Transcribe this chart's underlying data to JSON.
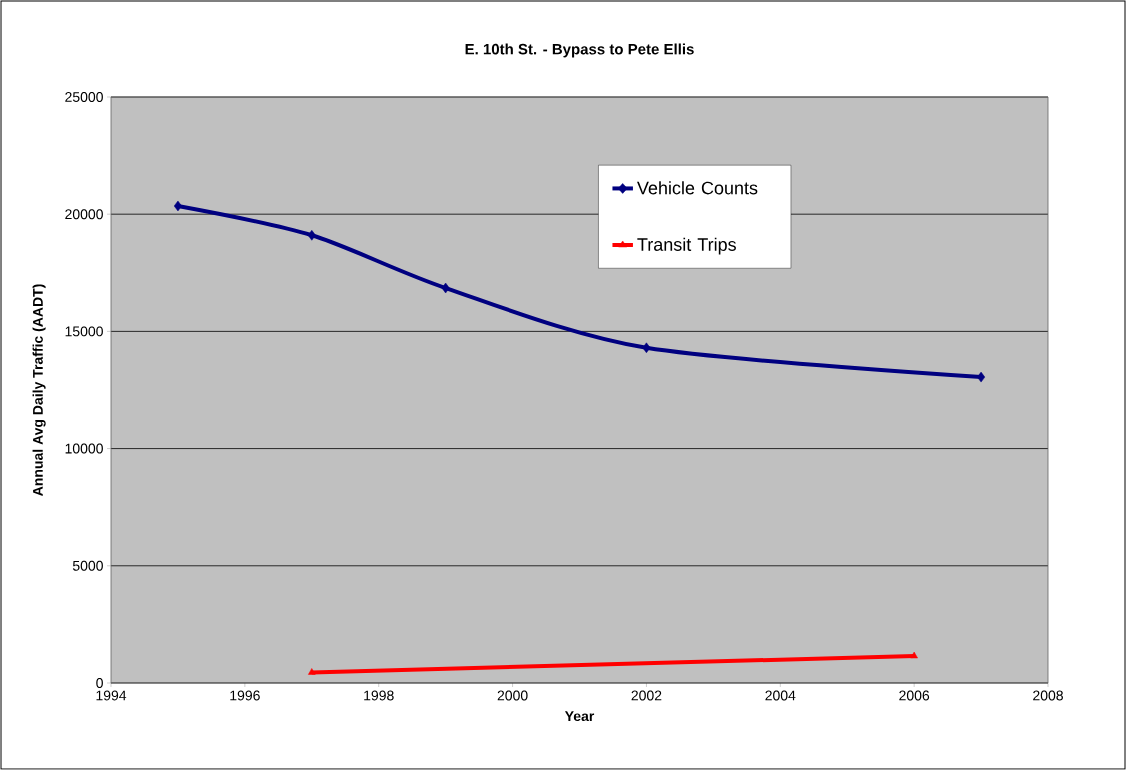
{
  "chart_data": {
    "type": "line",
    "title": "E. 10th St. - Bypass to Pete Ellis",
    "xlabel": "Year",
    "ylabel": "Annual Avg Daily Traffic (AADT)",
    "series": [
      {
        "name": "Vehicle Counts",
        "color": "#000080",
        "x": [
          1995,
          1997,
          1999,
          2002,
          2007
        ],
        "values": [
          20350,
          19100,
          16850,
          14300,
          13050
        ],
        "marker": "diamond"
      },
      {
        "name": "Transit Trips",
        "color": "#ff0000",
        "x": [
          1997,
          2006
        ],
        "values": [
          450,
          1150
        ],
        "marker": "triangle"
      }
    ],
    "xlim": [
      1994,
      2008
    ],
    "xticks": [
      1994,
      1996,
      1998,
      2000,
      2002,
      2004,
      2006,
      2008
    ],
    "ylim": [
      0,
      25000
    ],
    "yticks": [
      0,
      5000,
      10000,
      15000,
      20000,
      25000
    ],
    "grid": "y",
    "legend": "top right"
  }
}
